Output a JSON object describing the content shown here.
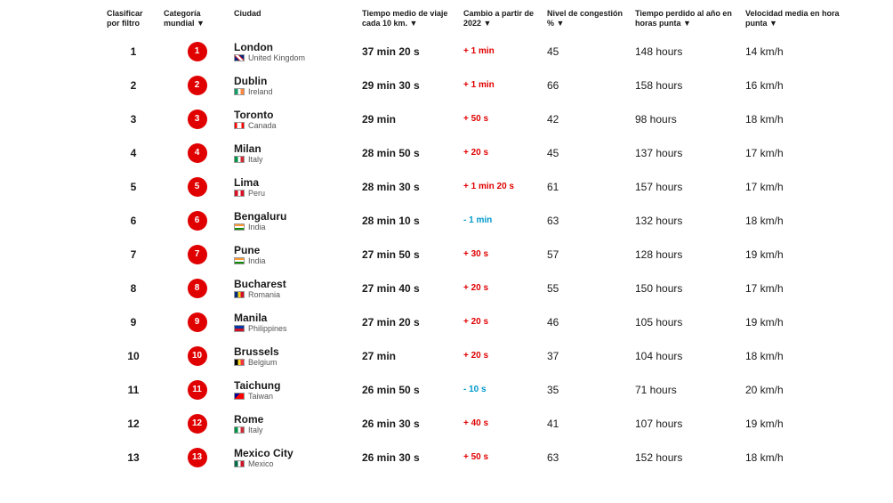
{
  "columns": {
    "filter": "Clasificar por filtro",
    "world": "Categoría mundial ▼",
    "city": "Ciudad",
    "time": "Tiempo medio de viaje cada 10 km. ▼",
    "change": "Cambio a partir de 2022 ▼",
    "congestion": "Nivel de congestión % ▼",
    "lost": "Tiempo perdido al año en horas punta ▼",
    "speed": "Velocidad media en hora punta ▼"
  },
  "flags": {
    "United Kingdom": "linear-gradient(45deg,#00247d 30%,#cf142b 30%,#cf142b 40%,#fff 40%,#fff 60%,#cf142b 60%,#cf142b 70%,#00247d 70%)",
    "Ireland": "linear-gradient(90deg,#169b62 33%,#fff 33%,#fff 66%,#ff883e 66%)",
    "Canada": "linear-gradient(90deg,#ff0000 25%,#fff 25%,#fff 75%,#ff0000 75%)",
    "Italy": "linear-gradient(90deg,#009246 33%,#fff 33%,#fff 66%,#ce2b37 66%)",
    "Peru": "linear-gradient(90deg,#d91023 33%,#fff 33%,#fff 66%,#d91023 66%)",
    "India": "linear-gradient(180deg,#ff9933 33%,#fff 33%,#fff 66%,#138808 66%)",
    "Romania": "linear-gradient(90deg,#002b7f 33%,#fcd116 33%,#fcd116 66%,#ce1126 66%)",
    "Philippines": "linear-gradient(180deg,#0038a8 50%,#ce1126 50%)",
    "Belgium": "linear-gradient(90deg,#000 33%,#fdda24 33%,#fdda24 66%,#ef3340 66%)",
    "Taiwan": "linear-gradient(135deg,#000095 35%,#fe0000 35%)",
    "Mexico": "linear-gradient(90deg,#006847 33%,#fff 33%,#fff 66%,#ce1126 66%)"
  },
  "rows": [
    {
      "filter": "1",
      "rank": "1",
      "city": "London",
      "country": "United Kingdom",
      "time": "37 min 20 s",
      "change": "+ 1 min",
      "dir": "up",
      "cong": "45",
      "lost": "148 hours",
      "speed": "14 km/h"
    },
    {
      "filter": "2",
      "rank": "2",
      "city": "Dublin",
      "country": "Ireland",
      "time": "29 min 30 s",
      "change": "+ 1 min",
      "dir": "up",
      "cong": "66",
      "lost": "158 hours",
      "speed": "16 km/h"
    },
    {
      "filter": "3",
      "rank": "3",
      "city": "Toronto",
      "country": "Canada",
      "time": "29 min",
      "change": "+ 50 s",
      "dir": "up",
      "cong": "42",
      "lost": "98 hours",
      "speed": "18 km/h"
    },
    {
      "filter": "4",
      "rank": "4",
      "city": "Milan",
      "country": "Italy",
      "time": "28 min 50 s",
      "change": "+ 20 s",
      "dir": "up",
      "cong": "45",
      "lost": "137 hours",
      "speed": "17 km/h"
    },
    {
      "filter": "5",
      "rank": "5",
      "city": "Lima",
      "country": "Peru",
      "time": "28 min 30 s",
      "change": "+ 1 min 20 s",
      "dir": "up",
      "cong": "61",
      "lost": "157 hours",
      "speed": "17 km/h"
    },
    {
      "filter": "6",
      "rank": "6",
      "city": "Bengaluru",
      "country": "India",
      "time": "28 min 10 s",
      "change": "- 1 min",
      "dir": "down",
      "cong": "63",
      "lost": "132 hours",
      "speed": "18 km/h"
    },
    {
      "filter": "7",
      "rank": "7",
      "city": "Pune",
      "country": "India",
      "time": "27 min 50 s",
      "change": "+ 30 s",
      "dir": "up",
      "cong": "57",
      "lost": "128 hours",
      "speed": "19 km/h"
    },
    {
      "filter": "8",
      "rank": "8",
      "city": "Bucharest",
      "country": "Romania",
      "time": "27 min 40 s",
      "change": "+ 20 s",
      "dir": "up",
      "cong": "55",
      "lost": "150 hours",
      "speed": "17 km/h"
    },
    {
      "filter": "9",
      "rank": "9",
      "city": "Manila",
      "country": "Philippines",
      "time": "27 min 20 s",
      "change": "+ 20 s",
      "dir": "up",
      "cong": "46",
      "lost": "105 hours",
      "speed": "19 km/h"
    },
    {
      "filter": "10",
      "rank": "10",
      "city": "Brussels",
      "country": "Belgium",
      "time": "27 min",
      "change": "+ 20 s",
      "dir": "up",
      "cong": "37",
      "lost": "104 hours",
      "speed": "18 km/h"
    },
    {
      "filter": "11",
      "rank": "11",
      "city": "Taichung",
      "country": "Taiwan",
      "time": "26 min 50 s",
      "change": "- 10 s",
      "dir": "down",
      "cong": "35",
      "lost": "71 hours",
      "speed": "20 km/h"
    },
    {
      "filter": "12",
      "rank": "12",
      "city": "Rome",
      "country": "Italy",
      "time": "26 min 30 s",
      "change": "+ 40 s",
      "dir": "up",
      "cong": "41",
      "lost": "107 hours",
      "speed": "19 km/h"
    },
    {
      "filter": "13",
      "rank": "13",
      "city": "Mexico City",
      "country": "Mexico",
      "time": "26 min 30 s",
      "change": "+ 50 s",
      "dir": "up",
      "cong": "63",
      "lost": "152 hours",
      "speed": "18 km/h"
    }
  ]
}
